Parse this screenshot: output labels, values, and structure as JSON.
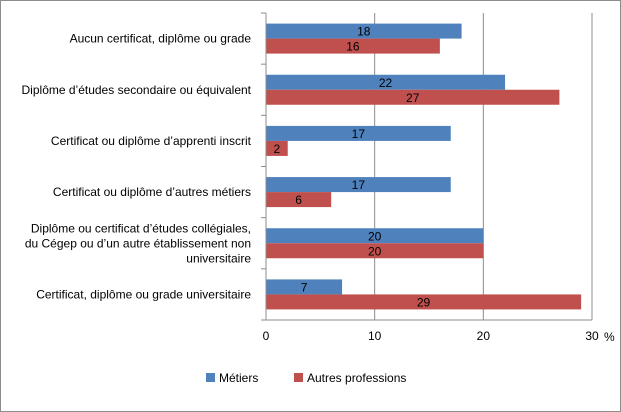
{
  "chart_data": {
    "type": "bar",
    "orientation": "horizontal",
    "categories": [
      [
        "Aucun certificat, diplôme ou grade"
      ],
      [
        "Diplôme d’études secondaire ou équivalent"
      ],
      [
        "Certificat ou diplôme d’apprenti inscrit"
      ],
      [
        "Certificat ou diplôme d’autres métiers"
      ],
      [
        "Diplôme ou certificat d’études collégiales,",
        "du Cégep ou d’un autre établissement non",
        "universitaire"
      ],
      [
        "Certificat, diplôme ou grade universitaire"
      ]
    ],
    "series": [
      {
        "name": "Métiers",
        "color": "#4f81bd",
        "values": [
          18,
          22,
          17,
          17,
          20,
          7
        ]
      },
      {
        "name": "Autres professions",
        "color": "#c0504d",
        "values": [
          16,
          27,
          2,
          6,
          20,
          29
        ]
      }
    ],
    "xlim": [
      0,
      30
    ],
    "xticks": [
      "0",
      "10",
      "20",
      "30"
    ],
    "x_unit": "%",
    "grid": true,
    "legend_position": "bottom"
  }
}
